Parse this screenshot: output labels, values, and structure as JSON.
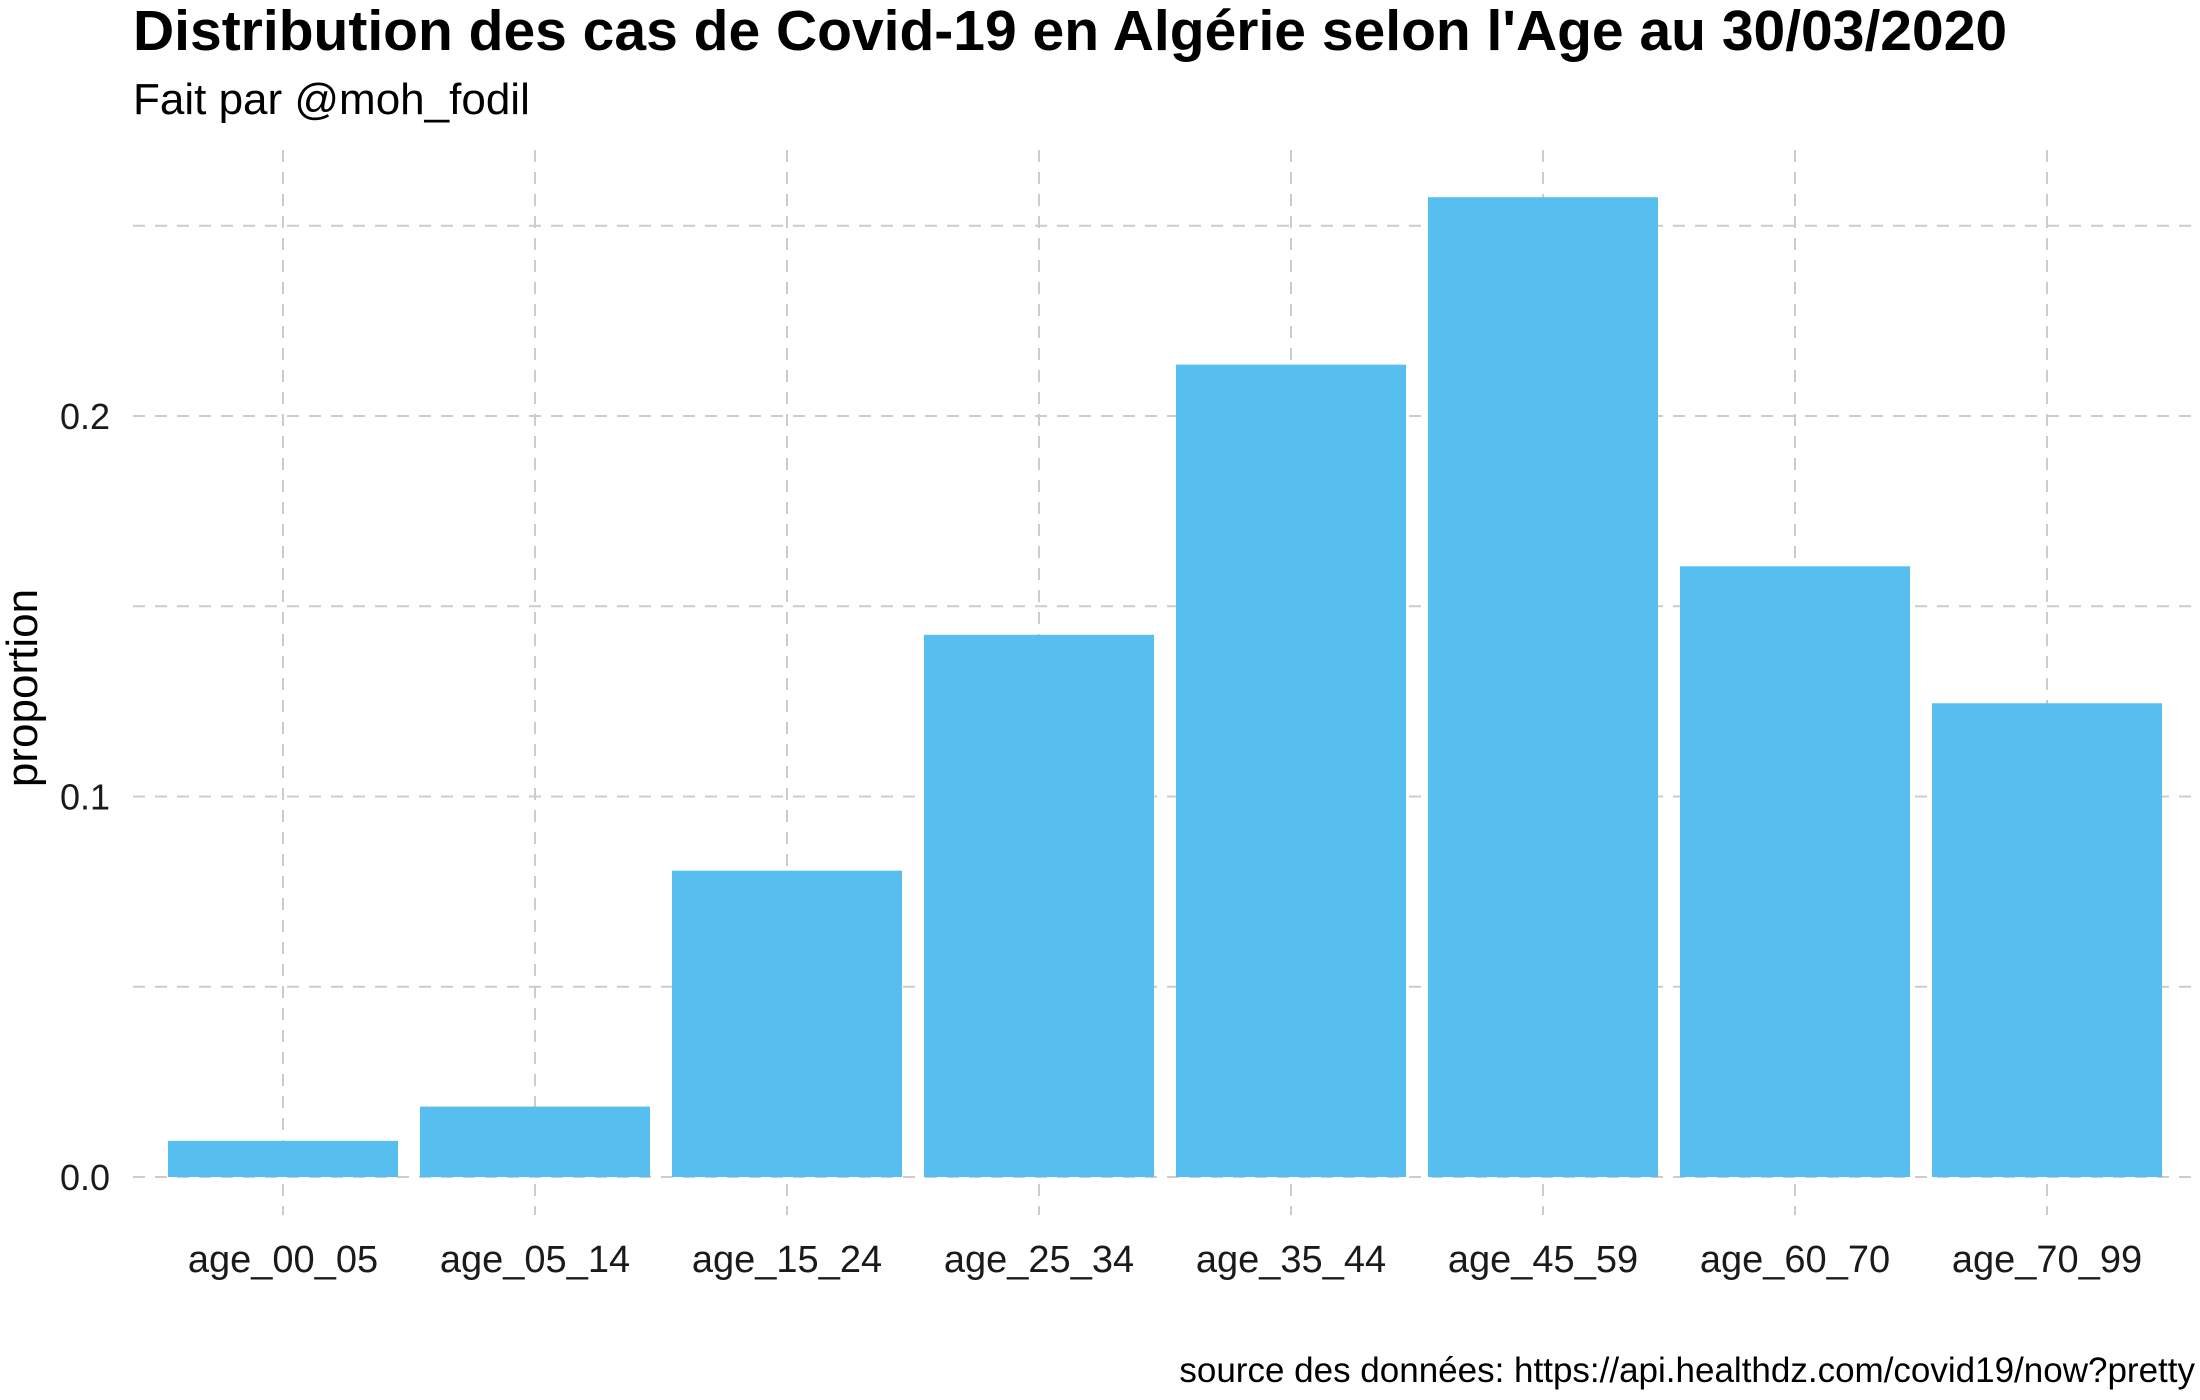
{
  "chart_data": {
    "type": "bar",
    "title": "Distribution des cas de Covid-19 en Algérie selon l'Age au 30/03/2020",
    "subtitle": "Fait par @moh_fodil",
    "caption": "source des données: https://api.healthdz.com/covid19/now?pretty",
    "xlabel": "",
    "ylabel": "proportion",
    "categories": [
      "age_00_05",
      "age_05_14",
      "age_15_24",
      "age_25_34",
      "age_35_44",
      "age_45_59",
      "age_60_70",
      "age_70_99"
    ],
    "values": [
      0.0095,
      0.0185,
      0.0805,
      0.1425,
      0.2135,
      0.2575,
      0.1605,
      0.1245
    ],
    "yticks": [
      0.0,
      0.1,
      0.2
    ],
    "ytick_labels": [
      "0.0",
      "0.1",
      "0.2"
    ],
    "ylim": [
      -0.01,
      0.27
    ],
    "grid": "major and minor, dashed",
    "legend": "none",
    "bar_color": "#56BFEF",
    "grid_color": "#cccccc"
  }
}
